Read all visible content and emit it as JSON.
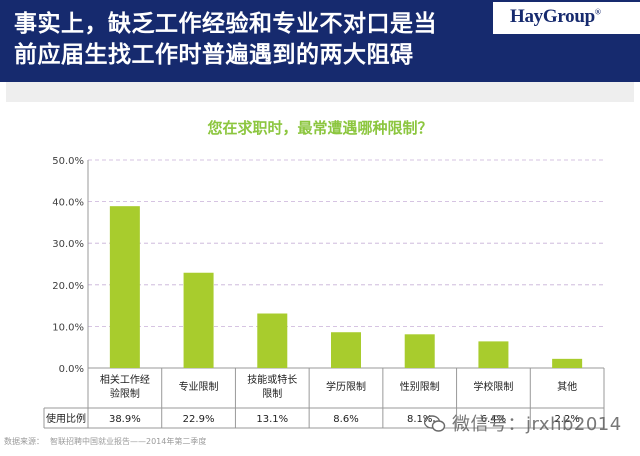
{
  "header": {
    "title_line1": "事实上，缺乏工作经验和专业不对口是当",
    "title_line2": "前应届生找工作时普遍遇到的两大阻碍",
    "logo_text": "HayGroup",
    "logo_mark": "®"
  },
  "colors": {
    "header_bg": "#162a6e",
    "bar": "#a8cc2d",
    "subtitle": "#8cc63f",
    "gridline": "#c8b0d8"
  },
  "chart_data": {
    "type": "bar",
    "title": "您在求职时，最常遭遇哪种限制？",
    "categories": [
      "相关工作经验限制",
      "专业限制",
      "技能或特长限制",
      "学历限制",
      "性别限制",
      "学校限制",
      "其他"
    ],
    "category_lines": [
      [
        "相关工作经",
        "验限制"
      ],
      [
        "专业限制"
      ],
      [
        "技能或特长",
        "限制"
      ],
      [
        "学历限制"
      ],
      [
        "性别限制"
      ],
      [
        "学校限制"
      ],
      [
        "其他"
      ]
    ],
    "series": [
      {
        "name": "使用比例",
        "values": [
          38.9,
          22.9,
          13.1,
          8.6,
          8.1,
          6.4,
          2.2
        ],
        "labels": [
          "38.9%",
          "22.9%",
          "13.1%",
          "8.6%",
          "8.1%",
          "6.4%",
          "2.2%"
        ]
      }
    ],
    "ylim": [
      0,
      50
    ],
    "y_ticks": [
      0,
      10,
      20,
      30,
      40,
      50
    ],
    "y_tick_labels": [
      "0.0%",
      "10.0%",
      "20.0%",
      "30.0%",
      "40.0%",
      "50.0%"
    ],
    "table_row_label": "使用比例",
    "grid": true,
    "legend": "none"
  },
  "footer": {
    "source_prefix": "数据来源：",
    "source_text": "智联招聘中国就业报告——2014年第二季度"
  },
  "watermark": {
    "text": "微信号：jrxhb2014"
  }
}
